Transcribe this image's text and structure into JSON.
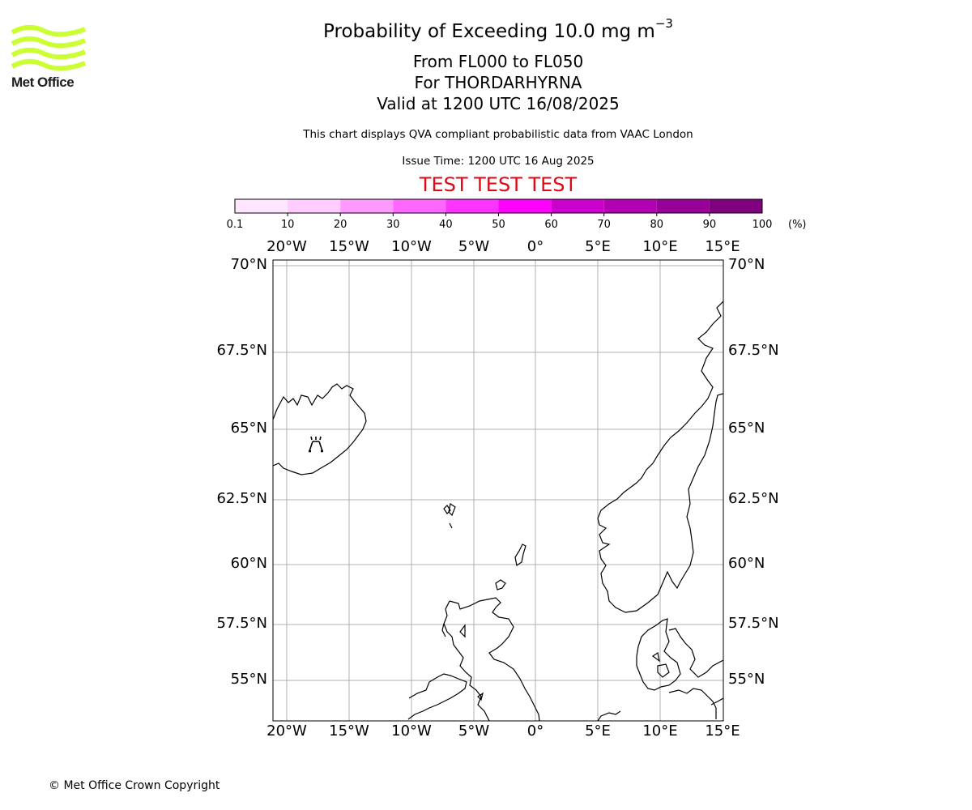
{
  "logo": {
    "text": "Met Office",
    "color": "#ccff33"
  },
  "title": {
    "main": "Probability of Exceeding 10.0 mg m",
    "exponent": "−3",
    "flight_levels": "From FL000 to FL050",
    "volcano": "For THORDARHYRNA",
    "valid": "Valid at 1200 UTC 16/08/2025"
  },
  "subtitle": "This chart displays QVA compliant probabilistic data from VAAC London",
  "issue_time": "Issue Time: 1200 UTC 16 Aug 2025",
  "test_banner": {
    "text": "TEST TEST TEST",
    "color": "#e30613"
  },
  "colorbar": {
    "unit": "(%)",
    "ticks": [
      "0.1",
      "10",
      "20",
      "30",
      "40",
      "50",
      "60",
      "70",
      "80",
      "90",
      "100"
    ],
    "colors": [
      "#ffe6ff",
      "#ffccff",
      "#ff99ff",
      "#ff66ff",
      "#ff33ff",
      "#ff00ff",
      "#cc00cc",
      "#b300b3",
      "#990099",
      "#800080"
    ]
  },
  "map": {
    "lat_labels": [
      "70°N",
      "67.5°N",
      "65°N",
      "62.5°N",
      "60°N",
      "57.5°N",
      "55°N"
    ],
    "lon_labels": [
      "20°W",
      "15°W",
      "10°W",
      "5°W",
      "0°",
      "5°E",
      "10°E",
      "15°E"
    ],
    "volcano_icon": "volcano-icon"
  },
  "copyright": "© Met Office Crown Copyright"
}
